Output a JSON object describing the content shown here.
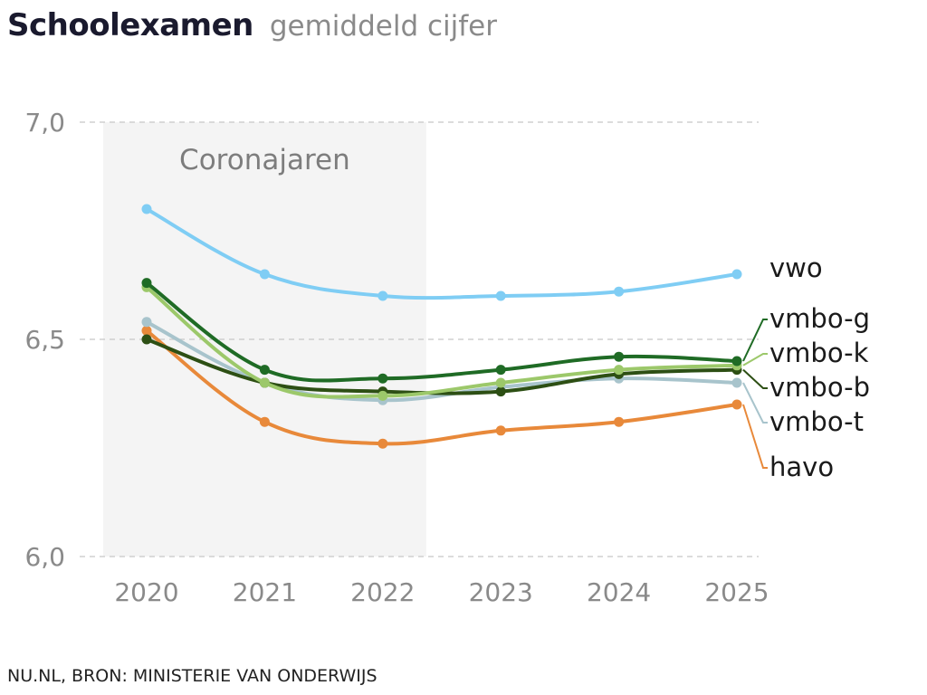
{
  "header": {
    "title": "Schoolexamen",
    "subtitle": "gemiddeld cijfer"
  },
  "footer": {
    "source": "NU.NL, BRON: MINISTERIE VAN ONDERWIJS"
  },
  "chart_data": {
    "type": "line",
    "x": [
      2020,
      2021,
      2022,
      2023,
      2024,
      2025
    ],
    "x_tick_labels": [
      "2020",
      "2021",
      "2022",
      "2023",
      "2024",
      "2025"
    ],
    "ylim": [
      6.0,
      7.0
    ],
    "y_ticks": [
      6.0,
      6.5,
      7.0
    ],
    "y_tick_labels": [
      "6,0",
      "6,5",
      "7,0"
    ],
    "grid": "horizontal dashed",
    "highlight": {
      "label": "Coronajaren",
      "from": 2020,
      "to": 2022
    },
    "series": [
      {
        "name": "vwo",
        "color": "#7fcdf4",
        "values": [
          6.8,
          6.65,
          6.6,
          6.6,
          6.61,
          6.65
        ]
      },
      {
        "name": "vmbo-g",
        "color": "#1f6b25",
        "values": [
          6.63,
          6.43,
          6.41,
          6.43,
          6.46,
          6.45
        ]
      },
      {
        "name": "vmbo-k",
        "color": "#9cc86a",
        "values": [
          6.62,
          6.4,
          6.37,
          6.4,
          6.43,
          6.44
        ]
      },
      {
        "name": "vmbo-b",
        "color": "#2d4f14",
        "values": [
          6.5,
          6.4,
          6.38,
          6.38,
          6.42,
          6.43
        ]
      },
      {
        "name": "vmbo-t",
        "color": "#a8c4cc",
        "values": [
          6.54,
          6.4,
          6.36,
          6.39,
          6.41,
          6.4
        ]
      },
      {
        "name": "havo",
        "color": "#e8893a",
        "values": [
          6.52,
          6.31,
          6.26,
          6.29,
          6.31,
          6.35
        ]
      }
    ]
  }
}
